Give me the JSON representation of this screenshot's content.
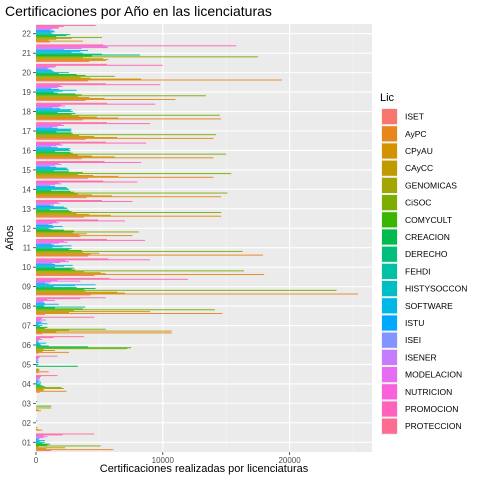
{
  "chart_data": {
    "type": "bar",
    "orientation": "horizontal",
    "title": "Certificaciones por Año en las licenciaturas",
    "xlabel": "Certificaciones realizadas por licenciaturas",
    "ylabel": "Años",
    "xlim": [
      0,
      26500
    ],
    "x_ticks": [
      0,
      10000,
      20000
    ],
    "grid": true,
    "legend_position": "right",
    "legend_title": "Lic",
    "categories": [
      "01",
      "02",
      "03",
      "04",
      "05",
      "06",
      "07",
      "08",
      "09",
      "10",
      "11",
      "12",
      "13",
      "14",
      "15",
      "16",
      "17",
      "18",
      "19",
      "20",
      "21",
      "22"
    ],
    "series": [
      {
        "name": "ISET",
        "color": "#F8766D",
        "values": [
          1200,
          0,
          0,
          300,
          200,
          200,
          500,
          700,
          4300,
          4600,
          4100,
          3500,
          3800,
          4000,
          4100,
          3600,
          3900,
          3700,
          3900,
          4100,
          4200,
          1100
        ]
      },
      {
        "name": "AyPC",
        "color": "#E7861B",
        "values": [
          6100,
          500,
          400,
          2400,
          1000,
          2600,
          10700,
          14700,
          25400,
          18000,
          17900,
          7600,
          14600,
          14600,
          14000,
          14000,
          14000,
          14600,
          11000,
          19400,
          5500,
          3700
        ]
      },
      {
        "name": "CPyAU",
        "color": "#D39200",
        "values": [
          800,
          200,
          200,
          600,
          200,
          500,
          1600,
          2600,
          7000,
          5500,
          4300,
          3400,
          5900,
          6000,
          6500,
          6200,
          6400,
          6500,
          5400,
          8300,
          5700,
          1000
        ]
      },
      {
        "name": "CAyCC",
        "color": "#BE9C00",
        "values": [
          2300,
          0,
          0,
          600,
          300,
          1500,
          10700,
          9000,
          6400,
          5100,
          5000,
          4000,
          4200,
          4400,
          4500,
          4400,
          4600,
          4800,
          4200,
          4300,
          5300,
          1600
        ]
      },
      {
        "name": "GENOMICAS",
        "color": "#A3A500",
        "values": [
          200,
          100,
          1200,
          2200,
          200,
          600,
          2600,
          3000,
          3900,
          3800,
          3700,
          2900,
          3200,
          3300,
          3300,
          3300,
          3400,
          3400,
          3300,
          3500,
          3700,
          2800
        ]
      },
      {
        "name": "CiSOC",
        "color": "#7CAE00",
        "values": [
          5100,
          0,
          0,
          2000,
          0,
          7200,
          5500,
          14100,
          23700,
          16400,
          16300,
          8100,
          14600,
          15100,
          15400,
          15000,
          14200,
          14500,
          13400,
          6200,
          17500,
          5200
        ]
      },
      {
        "name": "COMYCULT",
        "color": "#39B600",
        "values": [
          900,
          0,
          1200,
          700,
          0,
          7500,
          700,
          3700,
          3800,
          3100,
          3600,
          3000,
          2800,
          3000,
          3700,
          2900,
          2900,
          2800,
          3600,
          3900,
          4400,
          1600
        ]
      },
      {
        "name": "CREACION",
        "color": "#00BB4E",
        "values": [
          1100,
          0,
          0,
          500,
          3300,
          4100,
          900,
          1500,
          4700,
          2800,
          2600,
          2200,
          2600,
          2700,
          2600,
          2700,
          2800,
          3100,
          3100,
          3200,
          8200,
          2400
        ]
      },
      {
        "name": "DERECHO",
        "color": "#00BF7D",
        "values": [
          500,
          0,
          0,
          300,
          100,
          1000,
          300,
          3900,
          3200,
          3000,
          2800,
          1200,
          1100,
          1200,
          1400,
          1500,
          1600,
          1700,
          1700,
          1800,
          5200,
          2700
        ]
      },
      {
        "name": "FEHDI",
        "color": "#00C1A3",
        "values": [
          700,
          0,
          0,
          400,
          200,
          400,
          500,
          600,
          1400,
          1500,
          1300,
          1000,
          2500,
          2600,
          2600,
          2700,
          2800,
          2900,
          1400,
          2600,
          3700,
          1300
        ]
      },
      {
        "name": "HISTYSOCCON",
        "color": "#00BFC4",
        "values": [
          300,
          0,
          0,
          100,
          0,
          300,
          200,
          700,
          3100,
          2200,
          2100,
          1400,
          2400,
          2500,
          2500,
          2600,
          2700,
          2700,
          2100,
          1400,
          2800,
          1200
        ]
      },
      {
        "name": "SOFTWARE",
        "color": "#00B8E7",
        "values": [
          700,
          100,
          100,
          400,
          200,
          800,
          900,
          1800,
          4700,
          2900,
          2800,
          2100,
          2200,
          2400,
          2400,
          2700,
          2800,
          2800,
          3200,
          1300,
          3500,
          1500
        ]
      },
      {
        "name": "ISTU",
        "color": "#00A9FF",
        "values": [
          200,
          0,
          0,
          200,
          100,
          200,
          400,
          700,
          1000,
          1500,
          1400,
          1300,
          1400,
          1500,
          1600,
          1700,
          1700,
          1900,
          1800,
          1200,
          4100,
          1400
        ]
      },
      {
        "name": "ISEI",
        "color": "#8494FF",
        "values": [
          300,
          0,
          0,
          300,
          200,
          200,
          500,
          600,
          700,
          1300,
          1200,
          1000,
          1100,
          1100,
          1100,
          1200,
          1300,
          1300,
          1200,
          900,
          2200,
          1100
        ]
      },
      {
        "name": "ISENER",
        "color": "#C77CFF",
        "values": [
          600,
          0,
          0,
          200,
          100,
          200,
          300,
          600,
          1200,
          1900,
          1800,
          1300,
          1400,
          1500,
          1500,
          1600,
          1700,
          1800,
          1700,
          1000,
          3600,
          1300
        ]
      },
      {
        "name": "MODELACION",
        "color": "#E76BF3",
        "values": [
          900,
          0,
          0,
          300,
          200,
          500,
          800,
          1500,
          3500,
          2600,
          2500,
          1800,
          1900,
          2000,
          2000,
          2100,
          2200,
          2300,
          2100,
          1500,
          5700,
          1800
        ]
      },
      {
        "name": "NUTRICION",
        "color": "#FA62DB",
        "values": [
          600,
          0,
          0,
          300,
          200,
          300,
          400,
          900,
          1700,
          2300,
          2200,
          1600,
          1700,
          1800,
          1800,
          1900,
          2000,
          2000,
          1900,
          1600,
          5600,
          1800
        ]
      },
      {
        "name": "PROMOCION",
        "color": "#FF62BC",
        "values": [
          2100,
          0,
          0,
          400,
          300,
          1400,
          500,
          3500,
          12000,
          9000,
          8600,
          7000,
          7600,
          8000,
          8300,
          8700,
          9000,
          9400,
          9800,
          10000,
          15800,
          2200
        ]
      },
      {
        "name": "PROTECCION",
        "color": "#FF6C91",
        "values": [
          4600,
          0,
          0,
          1700,
          1700,
          3800,
          4600,
          5500,
          5800,
          5700,
          5600,
          4900,
          5200,
          5300,
          5400,
          5500,
          5600,
          5600,
          5500,
          5600,
          5300,
          4700
        ]
      }
    ]
  }
}
